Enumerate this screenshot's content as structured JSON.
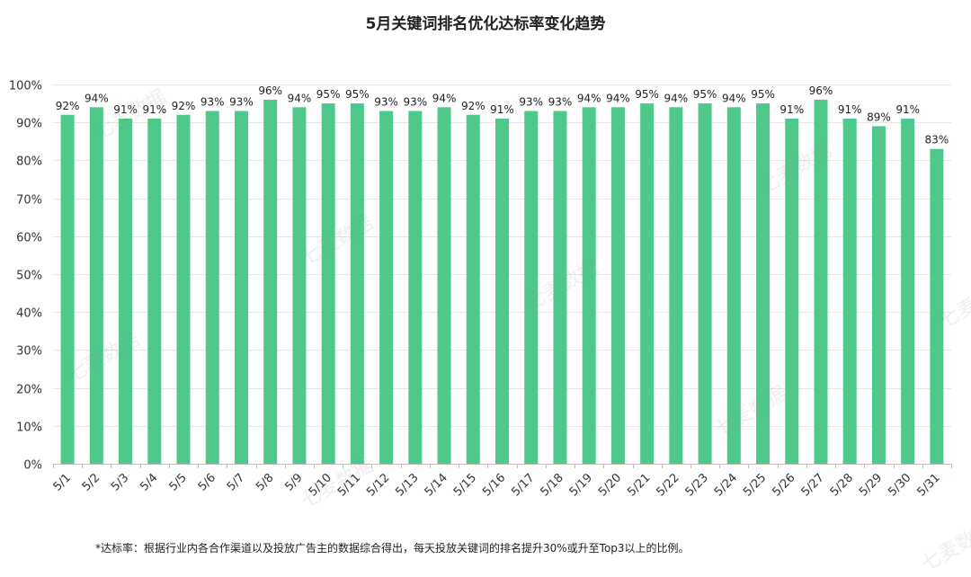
{
  "chart_data": {
    "type": "bar",
    "title": "5月关键词排名优化达标率变化趋势",
    "xlabel": "",
    "ylabel": "",
    "ylim": [
      0,
      100
    ],
    "yticks": [
      "0%",
      "10%",
      "20%",
      "30%",
      "40%",
      "50%",
      "60%",
      "70%",
      "80%",
      "90%",
      "100%"
    ],
    "grid": true,
    "legend": "none",
    "bar_color": "#4ec98b",
    "categories": [
      "5/1",
      "5/2",
      "5/3",
      "5/4",
      "5/5",
      "5/6",
      "5/7",
      "5/8",
      "5/9",
      "5/10",
      "5/11",
      "5/12",
      "5/13",
      "5/14",
      "5/15",
      "5/16",
      "5/17",
      "5/18",
      "5/19",
      "5/20",
      "5/21",
      "5/22",
      "5/23",
      "5/24",
      "5/25",
      "5/26",
      "5/27",
      "5/28",
      "5/29",
      "5/30",
      "5/31"
    ],
    "values": [
      92,
      94,
      91,
      91,
      92,
      93,
      93,
      96,
      94,
      95,
      95,
      93,
      93,
      94,
      92,
      91,
      93,
      93,
      94,
      94,
      95,
      94,
      95,
      94,
      95,
      91,
      96,
      91,
      89,
      91,
      83
    ],
    "data_labels": [
      "92%",
      "94%",
      "91%",
      "91%",
      "92%",
      "93%",
      "93%",
      "96%",
      "94%",
      "95%",
      "95%",
      "93%",
      "93%",
      "94%",
      "92%",
      "91%",
      "93%",
      "93%",
      "94%",
      "94%",
      "95%",
      "94%",
      "95%",
      "94%",
      "95%",
      "91%",
      "96%",
      "91%",
      "89%",
      "91%",
      "83%"
    ]
  },
  "footnote": "*达标率：根据行业内各合作渠道以及投放广告主的数据综合得出，每天投放关键词的排名提升30%或升至Top3以上的比例。",
  "watermark": "七麦数据"
}
